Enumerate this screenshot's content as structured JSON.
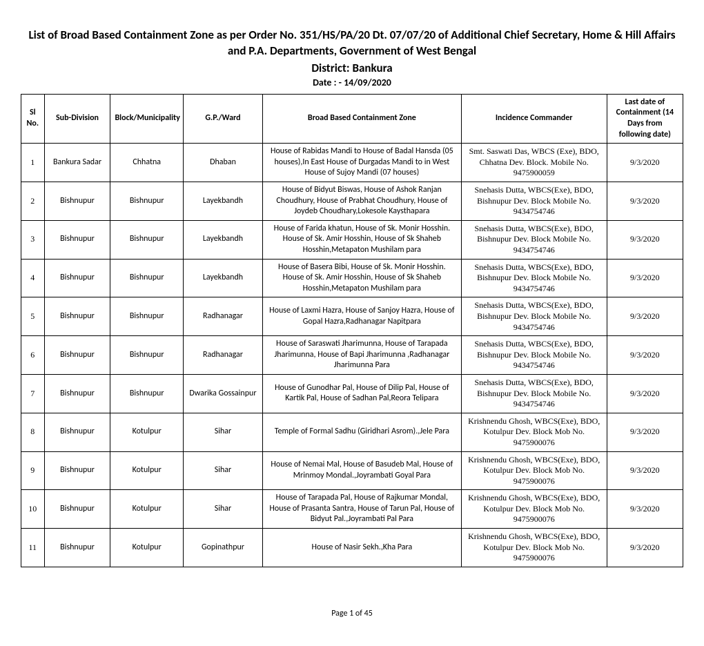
{
  "header": {
    "title_line1": "List of Broad Based Containment Zone as per Order No. 351/HS/PA/20 Dt. 07/07/20 of Additional Chief Secretary, Home & Hill Affairs and P.A. Departments, Government of West Bengal",
    "district": "District: Bankura",
    "date": "Date : - 14/09/2020"
  },
  "table": {
    "columns": {
      "sl": "Sl No.",
      "sub": "Sub-Division",
      "block": "Block/Municipality",
      "gp": "G.P./Ward",
      "zone": "Broad Based Containment Zone",
      "commander": "Incidence Commander",
      "last_date": "Last date of Containment (14 Days from following date)"
    },
    "rows": [
      {
        "sl": "1",
        "sub": "Bankura Sadar",
        "block": "Chhatna",
        "gp": "Dhaban",
        "zone": "House of Rabidas Mandi to House of Badal Hansda         (05 houses),In East House of Durgadas Mandi to in West House of Sujoy Mandi (07 houses)",
        "commander": "Smt. Saswati Das, WBCS (Exe), BDO, Chhatna Dev. Block. Mobile No. 9475900059",
        "last_date": "9/3/2020"
      },
      {
        "sl": "2",
        "sub": "Bishnupur",
        "block": "Bishnupur",
        "gp": "Layekbandh",
        "zone": "House of Bidyut Biswas, House of Ashok Ranjan Choudhury, House of Prabhat Choudhury, House of Joydeb Choudhary,Lokesole Kaysthapara",
        "commander": "Snehasis Dutta, WBCS(Exe), BDO, Bishnupur Dev. Block Mobile No. 9434754746",
        "last_date": "9/3/2020"
      },
      {
        "sl": "3",
        "sub": "Bishnupur",
        "block": "Bishnupur",
        "gp": "Layekbandh",
        "zone": "House of Farida khatun, House of Sk. Monir Hosshin. House of Sk. Amir Hosshin, House of Sk Shaheb Hosshin,Metapaton Mushilam para",
        "commander": "Snehasis Dutta, WBCS(Exe), BDO, Bishnupur Dev. Block Mobile No. 9434754746",
        "last_date": "9/3/2020"
      },
      {
        "sl": "4",
        "sub": "Bishnupur",
        "block": "Bishnupur",
        "gp": "Layekbandh",
        "zone": "House of Basera Bibi, House of Sk. Monir Hosshin. House of Sk. Amir Hosshin, House of Sk Shaheb Hosshin,Metapaton Mushilam para",
        "commander": "Snehasis Dutta, WBCS(Exe), BDO, Bishnupur Dev. Block Mobile No. 9434754746",
        "last_date": "9/3/2020"
      },
      {
        "sl": "5",
        "sub": "Bishnupur",
        "block": "Bishnupur",
        "gp": "Radhanagar",
        "zone": "House of Laxmi Hazra, House of Sanjoy Hazra, House of Gopal Hazra,Radhanagar Napitpara",
        "commander": "Snehasis Dutta, WBCS(Exe), BDO, Bishnupur Dev. Block Mobile No. 9434754746",
        "last_date": "9/3/2020"
      },
      {
        "sl": "6",
        "sub": "Bishnupur",
        "block": "Bishnupur",
        "gp": "Radhanagar",
        "zone": "House of Saraswati Jharimunna, House of Tarapada Jharimunna, House of Bapi Jharimunna ,Radhanagar Jharimunna Para",
        "commander": "Snehasis Dutta, WBCS(Exe), BDO, Bishnupur Dev. Block Mobile No. 9434754746",
        "last_date": "9/3/2020"
      },
      {
        "sl": "7",
        "sub": "Bishnupur",
        "block": "Bishnupur",
        "gp": "Dwarika Gossainpur",
        "zone": "House of Gunodhar Pal, House of Dilip Pal, House of Kartik Pal, House of Sadhan Pal,Reora Telipara",
        "commander": "Snehasis Dutta, WBCS(Exe), BDO, Bishnupur Dev. Block Mobile No. 9434754746",
        "last_date": "9/3/2020"
      },
      {
        "sl": "8",
        "sub": "Bishnupur",
        "block": "Kotulpur",
        "gp": "Sihar",
        "zone": "Temple of Formal Sadhu (Giridhari Asrom).,Jele Para",
        "commander": "Krishnendu Ghosh, WBCS(Exe), BDO, Kotulpur Dev. Block Mob No. 9475900076",
        "last_date": "9/3/2020"
      },
      {
        "sl": "9",
        "sub": "Bishnupur",
        "block": "Kotulpur",
        "gp": "Sihar",
        "zone": "House of Nemai Mal, House of Basudeb Mal, House of Mrinmoy Mondal.,Joyrambati Goyal Para",
        "commander": "Krishnendu Ghosh, WBCS(Exe), BDO, Kotulpur Dev. Block Mob No. 9475900076",
        "last_date": "9/3/2020"
      },
      {
        "sl": "10",
        "sub": "Bishnupur",
        "block": "Kotulpur",
        "gp": "Sihar",
        "zone": "House of Tarapada Pal, House of Rajkumar Mondal, House of Prasanta Santra, House of Tarun Pal, House of Bidyut Pal.,Joyrambati Pal Para",
        "commander": "Krishnendu Ghosh, WBCS(Exe), BDO, Kotulpur Dev. Block Mob No. 9475900076",
        "last_date": "9/3/2020"
      },
      {
        "sl": "11",
        "sub": "Bishnupur",
        "block": "Kotulpur",
        "gp": "Gopinathpur",
        "zone": "House of Nasir Sekh.,Kha Para",
        "commander": "Krishnendu Ghosh, WBCS(Exe), BDO, Kotulpur Dev. Block Mob No. 9475900076",
        "last_date": "9/3/2020"
      }
    ]
  },
  "footer": {
    "page": "Page 1 of 45"
  }
}
